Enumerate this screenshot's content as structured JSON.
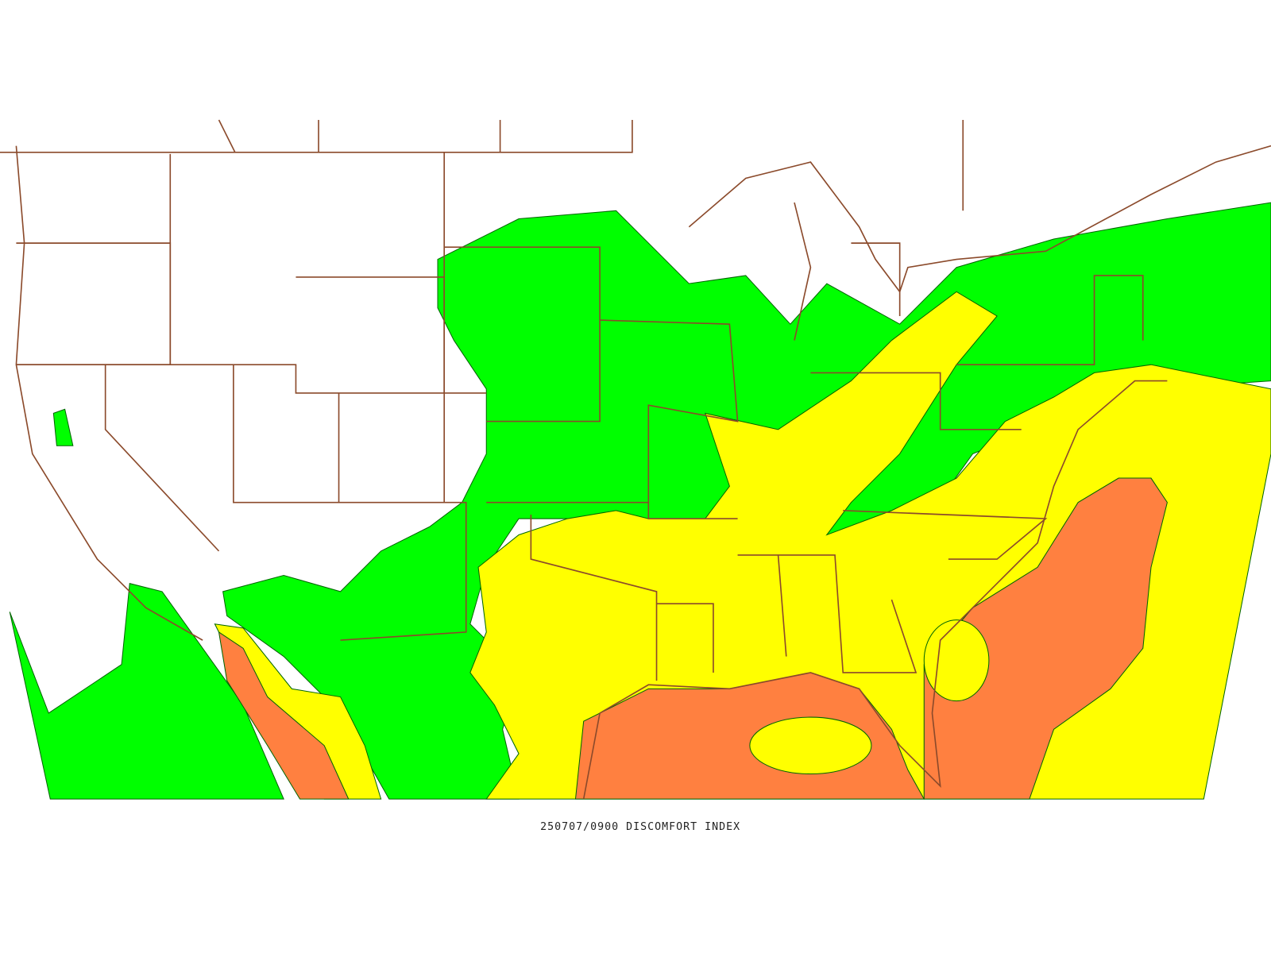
{
  "map": {
    "caption": "250707/0900 DISCOMFORT INDEX"
  }
}
